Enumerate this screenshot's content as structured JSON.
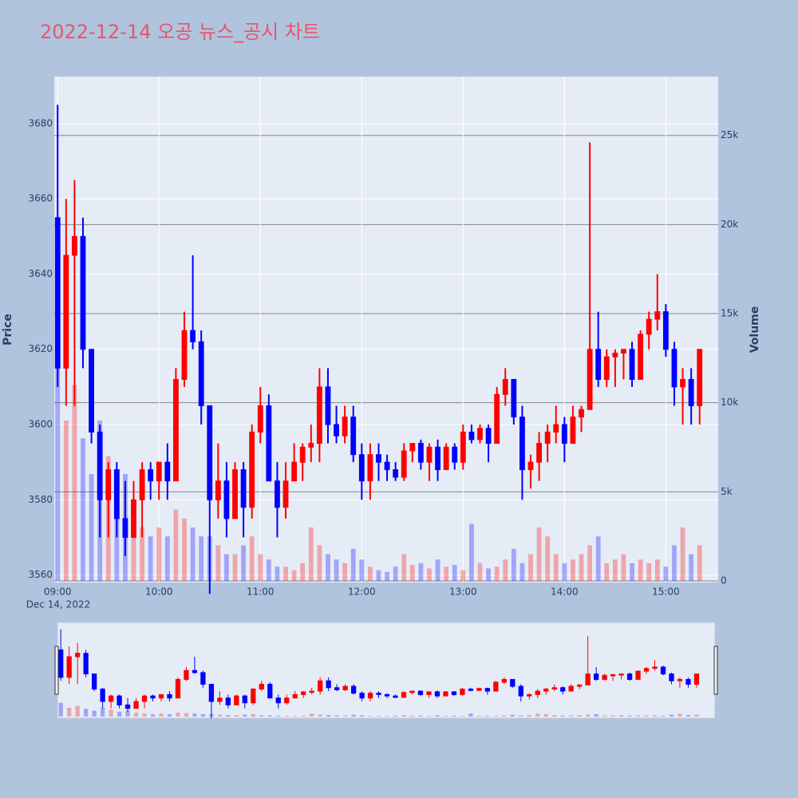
{
  "chart_data": {
    "type": "candlestick",
    "title": "2022-12-14 오공 뉴스_공시 차트",
    "y_label": "Price",
    "y2_label": "Volume",
    "x_date_label": "Dec 14, 2022",
    "increasing_color": "#ff0000",
    "decreasing_color": "#0000ff",
    "grid": true,
    "rangeslider": true,
    "x": [
      "2022-12-14 09:00",
      "2022-12-14 09:05",
      "2022-12-14 09:10",
      "2022-12-14 09:15",
      "2022-12-14 09:20",
      "2022-12-14 09:25",
      "2022-12-14 09:30",
      "2022-12-14 09:35",
      "2022-12-14 09:40",
      "2022-12-14 09:45",
      "2022-12-14 09:50",
      "2022-12-14 09:55",
      "2022-12-14 10:00",
      "2022-12-14 10:05",
      "2022-12-14 10:10",
      "2022-12-14 10:15",
      "2022-12-14 10:20",
      "2022-12-14 10:25",
      "2022-12-14 10:30",
      "2022-12-14 10:35",
      "2022-12-14 10:40",
      "2022-12-14 10:45",
      "2022-12-14 10:50",
      "2022-12-14 10:55",
      "2022-12-14 11:00",
      "2022-12-14 11:05",
      "2022-12-14 11:10",
      "2022-12-14 11:15",
      "2022-12-14 11:20",
      "2022-12-14 11:25",
      "2022-12-14 11:30",
      "2022-12-14 11:35",
      "2022-12-14 11:40",
      "2022-12-14 11:45",
      "2022-12-14 11:50",
      "2022-12-14 11:55",
      "2022-12-14 12:00",
      "2022-12-14 12:05",
      "2022-12-14 12:10",
      "2022-12-14 12:15",
      "2022-12-14 12:20",
      "2022-12-14 12:25",
      "2022-12-14 12:30",
      "2022-12-14 12:35",
      "2022-12-14 12:40",
      "2022-12-14 12:45",
      "2022-12-14 12:50",
      "2022-12-14 12:55",
      "2022-12-14 13:00",
      "2022-12-14 13:05",
      "2022-12-14 13:10",
      "2022-12-14 13:15",
      "2022-12-14 13:20",
      "2022-12-14 13:25",
      "2022-12-14 13:30",
      "2022-12-14 13:35",
      "2022-12-14 13:40",
      "2022-12-14 13:45",
      "2022-12-14 13:50",
      "2022-12-14 13:55",
      "2022-12-14 14:00",
      "2022-12-14 14:05",
      "2022-12-14 14:10",
      "2022-12-14 14:15",
      "2022-12-14 14:20",
      "2022-12-14 14:25",
      "2022-12-14 14:30",
      "2022-12-14 14:35",
      "2022-12-14 14:40",
      "2022-12-14 14:45",
      "2022-12-14 14:50",
      "2022-12-14 14:55",
      "2022-12-14 15:00",
      "2022-12-14 15:05",
      "2022-12-14 15:10",
      "2022-12-14 15:15",
      "2022-12-14 15:20"
    ],
    "open": [
      3655,
      3615,
      3645,
      3650,
      3620,
      3598,
      3580,
      3588,
      3575,
      3570,
      3580,
      3588,
      3585,
      3590,
      3585,
      3612,
      3625,
      3622,
      3605,
      3580,
      3585,
      3575,
      3588,
      3578,
      3598,
      3605,
      3585,
      3578,
      3585,
      3590,
      3594,
      3595,
      3610,
      3600,
      3597,
      3602,
      3592,
      3585,
      3592,
      3590,
      3588,
      3586,
      3593,
      3595,
      3590,
      3594,
      3588,
      3594,
      3590,
      3598,
      3596,
      3599,
      3595,
      3608,
      3612,
      3602,
      3588,
      3590,
      3595,
      3598,
      3600,
      3595,
      3602,
      3604,
      3620,
      3612,
      3618,
      3619,
      3620,
      3612,
      3624,
      3628,
      3630,
      3620,
      3610,
      3612,
      3605
    ],
    "high": [
      3685,
      3660,
      3665,
      3655,
      3620,
      3600,
      3590,
      3590,
      3585,
      3585,
      3590,
      3590,
      3590,
      3595,
      3615,
      3630,
      3645,
      3625,
      3605,
      3595,
      3590,
      3590,
      3590,
      3600,
      3610,
      3608,
      3590,
      3590,
      3595,
      3595,
      3600,
      3615,
      3615,
      3605,
      3605,
      3605,
      3595,
      3595,
      3595,
      3592,
      3590,
      3595,
      3595,
      3596,
      3595,
      3596,
      3595,
      3595,
      3600,
      3600,
      3600,
      3600,
      3610,
      3615,
      3612,
      3605,
      3592,
      3598,
      3600,
      3605,
      3602,
      3605,
      3605,
      3675,
      3630,
      3620,
      3620,
      3620,
      3622,
      3625,
      3630,
      3640,
      3632,
      3622,
      3615,
      3615,
      3620
    ],
    "low": [
      3610,
      3605,
      3605,
      3615,
      3595,
      3570,
      3570,
      3570,
      3565,
      3570,
      3570,
      3580,
      3580,
      3580,
      3585,
      3610,
      3620,
      3600,
      3555,
      3575,
      3570,
      3575,
      3570,
      3575,
      3595,
      3585,
      3570,
      3575,
      3585,
      3585,
      3590,
      3590,
      3595,
      3595,
      3595,
      3590,
      3580,
      3580,
      3585,
      3585,
      3585,
      3585,
      3590,
      3588,
      3585,
      3585,
      3588,
      3588,
      3588,
      3595,
      3595,
      3590,
      3595,
      3605,
      3600,
      3580,
      3583,
      3585,
      3590,
      3595,
      3590,
      3595,
      3598,
      3604,
      3610,
      3610,
      3610,
      3612,
      3610,
      3612,
      3620,
      3625,
      3618,
      3605,
      3600,
      3600,
      3600
    ],
    "close": [
      3615,
      3645,
      3650,
      3620,
      3598,
      3580,
      3588,
      3575,
      3570,
      3580,
      3588,
      3585,
      3590,
      3585,
      3612,
      3625,
      3622,
      3605,
      3580,
      3585,
      3575,
      3588,
      3578,
      3598,
      3605,
      3585,
      3578,
      3585,
      3590,
      3594,
      3595,
      3610,
      3600,
      3597,
      3602,
      3592,
      3585,
      3592,
      3590,
      3588,
      3586,
      3593,
      3595,
      3590,
      3594,
      3588,
      3594,
      3590,
      3598,
      3596,
      3599,
      3595,
      3608,
      3612,
      3602,
      3588,
      3590,
      3595,
      3598,
      3600,
      3595,
      3602,
      3604,
      3620,
      3612,
      3618,
      3619,
      3620,
      3612,
      3624,
      3628,
      3630,
      3620,
      3610,
      3612,
      3605,
      3620
    ],
    "volume": [
      14000,
      9000,
      11000,
      8000,
      6000,
      9000,
      7000,
      5000,
      6000,
      4000,
      3000,
      2500,
      3000,
      2500,
      4000,
      3500,
      3000,
      2500,
      2500,
      2000,
      1500,
      1500,
      2000,
      2500,
      1500,
      1200,
      800,
      800,
      600,
      1000,
      3000,
      2000,
      1500,
      1200,
      1000,
      1800,
      1200,
      800,
      600,
      500,
      800,
      1500,
      900,
      1000,
      700,
      1200,
      800,
      900,
      600,
      3200,
      1000,
      700,
      800,
      1200,
      1800,
      1000,
      1500,
      3000,
      2500,
      1500,
      1000,
      1200,
      1500,
      2000,
      2500,
      1000,
      1200,
      1500,
      1000,
      1200,
      1000,
      1200,
      800,
      2000,
      3000,
      1500,
      2000
    ],
    "xlim": [
      "2022-12-14 08:58",
      "2022-12-14 15:31"
    ],
    "xticks": [
      {
        "value": "2022-12-14 09:00",
        "label": "09:00"
      },
      {
        "value": "2022-12-14 10:00",
        "label": "10:00"
      },
      {
        "value": "2022-12-14 11:00",
        "label": "11:00"
      },
      {
        "value": "2022-12-14 12:00",
        "label": "12:00"
      },
      {
        "value": "2022-12-14 13:00",
        "label": "13:00"
      },
      {
        "value": "2022-12-14 14:00",
        "label": "14:00"
      },
      {
        "value": "2022-12-14 15:00",
        "label": "15:00"
      }
    ],
    "ylim": [
      3558,
      3692.5
    ],
    "yticks": [
      3560,
      3580,
      3600,
      3620,
      3640,
      3660,
      3680
    ],
    "y2lim": [
      -90,
      28300
    ],
    "y2ticks": [
      0,
      {
        "value": 5000,
        "label": "5k"
      },
      {
        "value": 10000,
        "label": "10k"
      },
      {
        "value": 15000,
        "label": "15k"
      },
      {
        "value": 20000,
        "label": "20k"
      },
      {
        "value": 25000,
        "label": "25k"
      }
    ]
  }
}
